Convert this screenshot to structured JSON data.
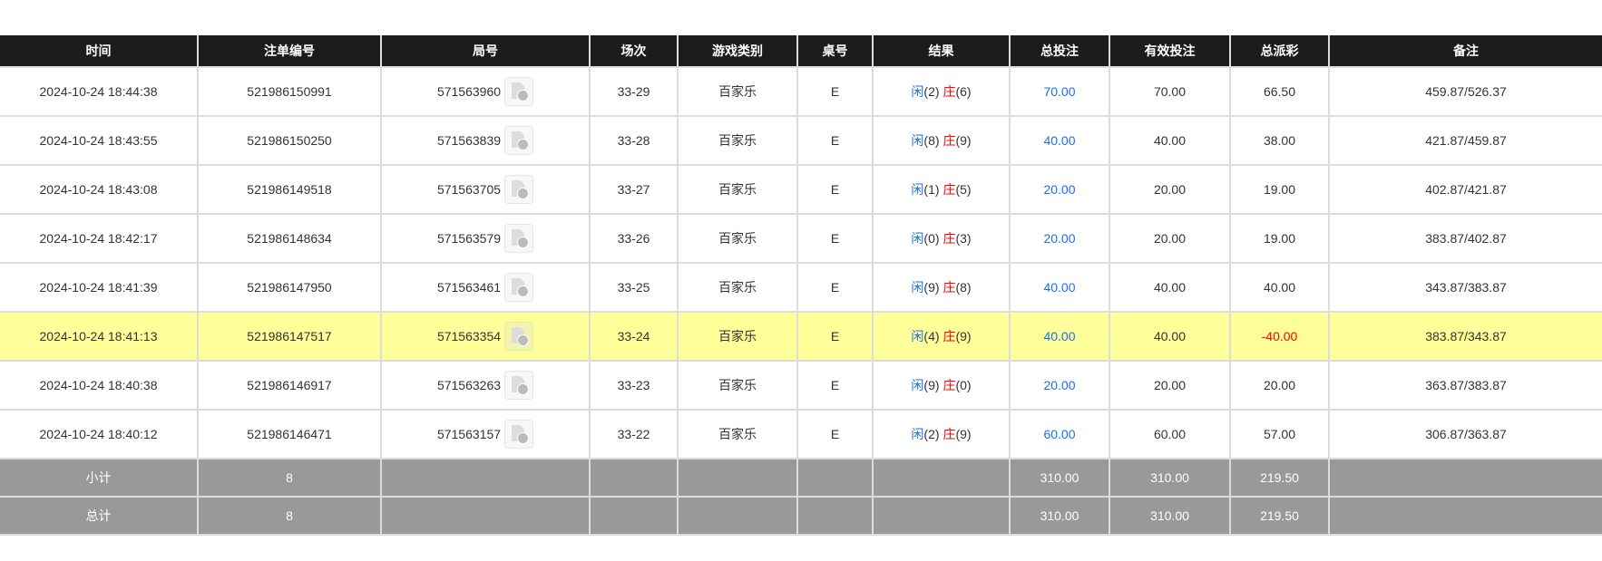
{
  "headers": [
    "时间",
    "注单编号",
    "局号",
    "场次",
    "游戏类别",
    "桌号",
    "结果",
    "总投注",
    "有效投注",
    "总派彩",
    "备注"
  ],
  "colors": {
    "header_bg": "#1c1c1c",
    "highlight_row": "#ffff99",
    "summary_bg": "#999999",
    "player": "#1a6ef0",
    "banker": "#ff0000",
    "negative": "#ff0000"
  },
  "rows": [
    {
      "time": "2024-10-24 18:44:38",
      "bet_id": "521986150991",
      "round_id": "571563960",
      "shoe": "33-29",
      "game": "百家乐",
      "table": "E",
      "player_label": "闲",
      "player": "(2)",
      "banker_label": "庄",
      "banker": "(6)",
      "total_bet": "70.00",
      "valid_bet": "70.00",
      "payout": "66.50",
      "note": "459.87/526.37",
      "highlight": false
    },
    {
      "time": "2024-10-24 18:43:55",
      "bet_id": "521986150250",
      "round_id": "571563839",
      "shoe": "33-28",
      "game": "百家乐",
      "table": "E",
      "player_label": "闲",
      "player": "(8)",
      "banker_label": "庄",
      "banker": "(9)",
      "total_bet": "40.00",
      "valid_bet": "40.00",
      "payout": "38.00",
      "note": "421.87/459.87",
      "highlight": false
    },
    {
      "time": "2024-10-24 18:43:08",
      "bet_id": "521986149518",
      "round_id": "571563705",
      "shoe": "33-27",
      "game": "百家乐",
      "table": "E",
      "player_label": "闲",
      "player": "(1)",
      "banker_label": "庄",
      "banker": "(5)",
      "total_bet": "20.00",
      "valid_bet": "20.00",
      "payout": "19.00",
      "note": "402.87/421.87",
      "highlight": false
    },
    {
      "time": "2024-10-24 18:42:17",
      "bet_id": "521986148634",
      "round_id": "571563579",
      "shoe": "33-26",
      "game": "百家乐",
      "table": "E",
      "player_label": "闲",
      "player": "(0)",
      "banker_label": "庄",
      "banker": "(3)",
      "total_bet": "20.00",
      "valid_bet": "20.00",
      "payout": "19.00",
      "note": "383.87/402.87",
      "highlight": false
    },
    {
      "time": "2024-10-24 18:41:39",
      "bet_id": "521986147950",
      "round_id": "571563461",
      "shoe": "33-25",
      "game": "百家乐",
      "table": "E",
      "player_label": "闲",
      "player": "(9)",
      "banker_label": "庄",
      "banker": "(8)",
      "total_bet": "40.00",
      "valid_bet": "40.00",
      "payout": "40.00",
      "note": "343.87/383.87",
      "highlight": false
    },
    {
      "time": "2024-10-24 18:41:13",
      "bet_id": "521986147517",
      "round_id": "571563354",
      "shoe": "33-24",
      "game": "百家乐",
      "table": "E",
      "player_label": "闲",
      "player": "(4)",
      "banker_label": "庄",
      "banker": "(9)",
      "total_bet": "40.00",
      "valid_bet": "40.00",
      "payout": "-40.00",
      "note": "383.87/343.87",
      "highlight": true
    },
    {
      "time": "2024-10-24 18:40:38",
      "bet_id": "521986146917",
      "round_id": "571563263",
      "shoe": "33-23",
      "game": "百家乐",
      "table": "E",
      "player_label": "闲",
      "player": "(9)",
      "banker_label": "庄",
      "banker": "(0)",
      "total_bet": "20.00",
      "valid_bet": "20.00",
      "payout": "20.00",
      "note": "363.87/383.87",
      "highlight": false
    },
    {
      "time": "2024-10-24 18:40:12",
      "bet_id": "521986146471",
      "round_id": "571563157",
      "shoe": "33-22",
      "game": "百家乐",
      "table": "E",
      "player_label": "闲",
      "player": "(2)",
      "banker_label": "庄",
      "banker": "(9)",
      "total_bet": "60.00",
      "valid_bet": "60.00",
      "payout": "57.00",
      "note": "306.87/363.87",
      "highlight": false
    }
  ],
  "summary": [
    {
      "label": "小计",
      "count": "8",
      "total_bet": "310.00",
      "valid_bet": "310.00",
      "payout": "219.50"
    },
    {
      "label": "总计",
      "count": "8",
      "total_bet": "310.00",
      "valid_bet": "310.00",
      "payout": "219.50"
    }
  ]
}
